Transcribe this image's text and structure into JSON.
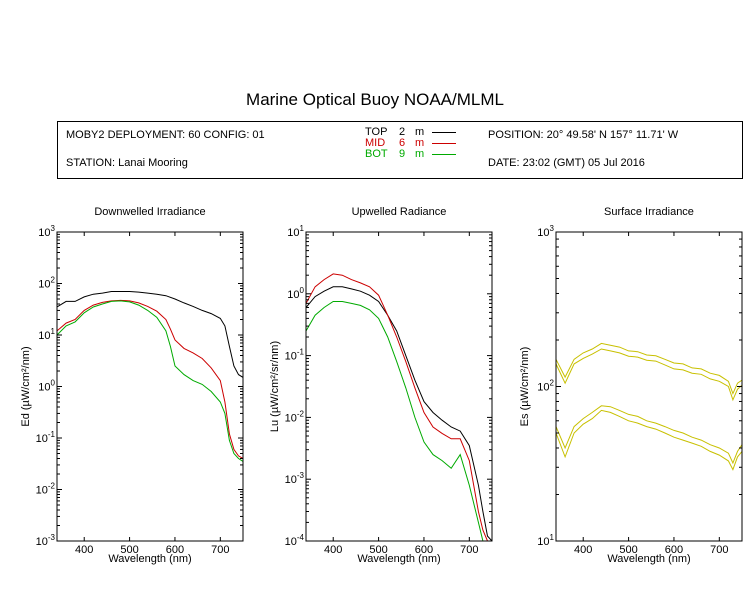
{
  "title": "Marine Optical Buoy NOAA/MLML",
  "info": {
    "deployment": "MOBY2 DEPLOYMENT: 60 CONFIG: 01",
    "station": "STATION: Lanai Mooring",
    "position": "POSITION: 20° 49.58' N   157° 11.71' W",
    "date": "DATE: 23:02 (GMT) 05 Jul 2016",
    "legend": [
      {
        "name": "TOP",
        "depth": "2",
        "unit": "m",
        "color": "#000000"
      },
      {
        "name": "MID",
        "depth": "6",
        "unit": "m",
        "color": "#cc0000"
      },
      {
        "name": "BOT",
        "depth": "9",
        "unit": "m",
        "color": "#00aa00"
      }
    ]
  },
  "chart_data": [
    {
      "type": "line",
      "title": "Downwelled Irradiance",
      "xlabel": "Wavelength (nm)",
      "ylabel": "Ed  (µW/cm²/nm)",
      "xlim": [
        340,
        750
      ],
      "ylim": [
        0.001,
        1000
      ],
      "yscale": "log",
      "xticks": [
        400,
        500,
        600,
        700
      ],
      "yticks": [
        {
          "v": 0.001,
          "b": "10",
          "e": "-3"
        },
        {
          "v": 0.01,
          "b": "10",
          "e": "-2"
        },
        {
          "v": 0.1,
          "b": "10",
          "e": "-1"
        },
        {
          "v": 1,
          "b": "10",
          "e": "0"
        },
        {
          "v": 10,
          "b": "10",
          "e": "1"
        },
        {
          "v": 100,
          "b": "10",
          "e": "2"
        },
        {
          "v": 1000,
          "b": "10",
          "e": "3"
        }
      ],
      "series": [
        {
          "name": "TOP",
          "color": "#000000",
          "x": [
            340,
            360,
            380,
            400,
            420,
            440,
            460,
            480,
            500,
            520,
            540,
            560,
            580,
            600,
            620,
            640,
            660,
            680,
            700,
            710,
            720,
            730,
            740,
            750
          ],
          "y": [
            35,
            45,
            45,
            55,
            62,
            65,
            70,
            70,
            70,
            68,
            65,
            62,
            58,
            50,
            42,
            36,
            30,
            26,
            21,
            15,
            6,
            2.5,
            1.7,
            1.5
          ]
        },
        {
          "name": "MID",
          "color": "#cc0000",
          "x": [
            340,
            360,
            380,
            400,
            420,
            440,
            460,
            480,
            500,
            520,
            540,
            560,
            580,
            590,
            600,
            620,
            640,
            660,
            680,
            700,
            710,
            720,
            730,
            740,
            750
          ],
          "y": [
            12,
            17,
            20,
            30,
            38,
            43,
            46,
            47,
            46,
            42,
            36,
            29,
            20,
            13,
            8,
            5.5,
            4.5,
            3.5,
            2.3,
            1.3,
            0.5,
            0.12,
            0.06,
            0.045,
            0.04
          ]
        },
        {
          "name": "BOT",
          "color": "#00aa00",
          "x": [
            340,
            360,
            380,
            400,
            420,
            440,
            460,
            480,
            500,
            520,
            540,
            560,
            580,
            590,
            600,
            620,
            640,
            660,
            680,
            700,
            710,
            720,
            730,
            740,
            750
          ],
          "y": [
            10,
            15,
            18,
            27,
            35,
            40,
            45,
            46,
            44,
            38,
            30,
            22,
            12,
            6,
            2.5,
            1.7,
            1.3,
            1.1,
            0.8,
            0.5,
            0.3,
            0.09,
            0.05,
            0.04,
            0.035
          ]
        }
      ]
    },
    {
      "type": "line",
      "title": "Upwelled Radiance",
      "xlabel": "Wavelength (nm)",
      "ylabel": "Lu  (µW/cm²/sr/nm)",
      "xlim": [
        340,
        750
      ],
      "ylim": [
        0.0001,
        10
      ],
      "yscale": "log",
      "xticks": [
        400,
        500,
        600,
        700
      ],
      "yticks": [
        {
          "v": 0.0001,
          "b": "10",
          "e": "-4"
        },
        {
          "v": 0.001,
          "b": "10",
          "e": "-3"
        },
        {
          "v": 0.01,
          "b": "10",
          "e": "-2"
        },
        {
          "v": 0.1,
          "b": "10",
          "e": "-1"
        },
        {
          "v": 1,
          "b": "10",
          "e": "0"
        },
        {
          "v": 10,
          "b": "10",
          "e": "1"
        }
      ],
      "series": [
        {
          "name": "TOP",
          "color": "#000000",
          "x": [
            340,
            360,
            380,
            400,
            420,
            440,
            460,
            480,
            500,
            520,
            540,
            560,
            580,
            600,
            620,
            640,
            660,
            680,
            700,
            720,
            730,
            740,
            750
          ],
          "y": [
            0.6,
            0.9,
            1.1,
            1.3,
            1.3,
            1.2,
            1.1,
            0.95,
            0.75,
            0.45,
            0.25,
            0.1,
            0.04,
            0.018,
            0.012,
            0.009,
            0.007,
            0.006,
            0.0035,
            0.0008,
            0.0003,
            0.00012,
            0.0001
          ]
        },
        {
          "name": "MID",
          "color": "#cc0000",
          "x": [
            340,
            360,
            380,
            400,
            420,
            440,
            460,
            480,
            500,
            520,
            540,
            560,
            580,
            600,
            620,
            640,
            660,
            680,
            700,
            720,
            730,
            740,
            750
          ],
          "y": [
            0.7,
            1.3,
            1.7,
            2.1,
            2.0,
            1.7,
            1.5,
            1.3,
            0.95,
            0.45,
            0.2,
            0.08,
            0.03,
            0.012,
            0.007,
            0.0055,
            0.0045,
            0.0045,
            0.002,
            0.0003,
            0.00015,
            0.0001,
            0.0001
          ]
        },
        {
          "name": "BOT",
          "color": "#00aa00",
          "x": [
            340,
            360,
            380,
            400,
            420,
            440,
            460,
            480,
            500,
            520,
            540,
            560,
            580,
            600,
            620,
            640,
            660,
            680,
            700,
            720,
            730,
            740,
            750
          ],
          "y": [
            0.25,
            0.45,
            0.6,
            0.75,
            0.75,
            0.7,
            0.65,
            0.55,
            0.4,
            0.2,
            0.08,
            0.03,
            0.01,
            0.004,
            0.0025,
            0.002,
            0.0015,
            0.0025,
            0.0008,
            0.0002,
            0.0001,
            0.0001,
            0.0001
          ]
        }
      ]
    },
    {
      "type": "line",
      "title": "Surface Irradiance",
      "xlabel": "Wavelength (nm)",
      "ylabel": "Es  (µW/cm²/nm)",
      "xlim": [
        340,
        750
      ],
      "ylim": [
        10,
        1000
      ],
      "yscale": "log",
      "xticks": [
        400,
        500,
        600,
        700
      ],
      "yticks": [
        {
          "v": 10,
          "b": "10",
          "e": "1"
        },
        {
          "v": 100,
          "b": "10",
          "e": "2"
        },
        {
          "v": 1000,
          "b": "10",
          "e": "3"
        }
      ],
      "series": [
        {
          "color": "#c8c000",
          "x": [
            340,
            360,
            380,
            400,
            420,
            440,
            460,
            480,
            500,
            520,
            540,
            560,
            580,
            600,
            620,
            640,
            660,
            680,
            700,
            720,
            730,
            740,
            750
          ],
          "y": [
            150,
            115,
            150,
            165,
            175,
            190,
            185,
            180,
            170,
            168,
            160,
            158,
            150,
            142,
            140,
            132,
            130,
            122,
            118,
            108,
            90,
            105,
            110
          ]
        },
        {
          "color": "#c8c000",
          "x": [
            340,
            360,
            380,
            400,
            420,
            440,
            460,
            480,
            500,
            520,
            540,
            560,
            580,
            600,
            620,
            640,
            660,
            680,
            700,
            720,
            730,
            740,
            750
          ],
          "y": [
            140,
            105,
            140,
            152,
            162,
            175,
            170,
            165,
            157,
            155,
            148,
            146,
            138,
            130,
            128,
            122,
            120,
            112,
            108,
            100,
            82,
            96,
            102
          ]
        },
        {
          "color": "#c8c000",
          "x": [
            340,
            360,
            380,
            400,
            420,
            440,
            460,
            480,
            500,
            520,
            540,
            560,
            580,
            600,
            620,
            640,
            660,
            680,
            700,
            720,
            730,
            740,
            750
          ],
          "y": [
            55,
            40,
            55,
            62,
            68,
            75,
            74,
            70,
            66,
            64,
            60,
            58,
            55,
            52,
            50,
            47,
            45,
            42,
            40,
            37,
            32,
            38,
            42
          ]
        },
        {
          "color": "#c8c000",
          "x": [
            340,
            360,
            380,
            400,
            420,
            440,
            460,
            480,
            500,
            520,
            540,
            560,
            580,
            600,
            620,
            640,
            660,
            680,
            700,
            720,
            730,
            740,
            750
          ],
          "y": [
            50,
            35,
            50,
            57,
            62,
            70,
            68,
            64,
            60,
            58,
            55,
            53,
            50,
            47,
            45,
            43,
            41,
            38,
            36,
            33,
            29,
            35,
            38
          ]
        }
      ]
    }
  ]
}
